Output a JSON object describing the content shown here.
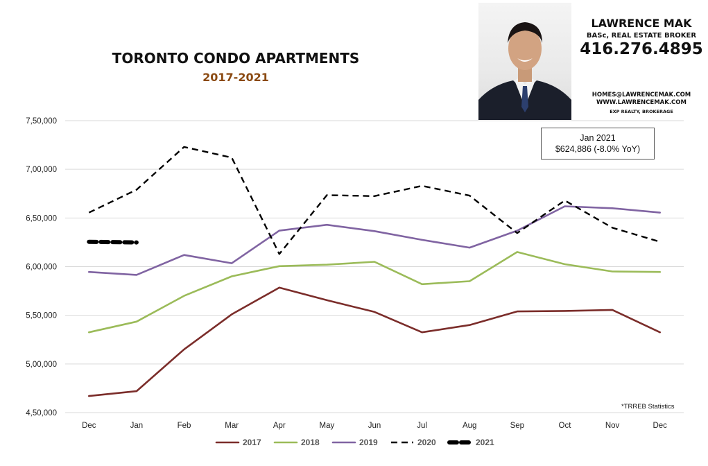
{
  "header": {
    "title": "TORONTO CONDO APARTMENTS",
    "subtitle": "2017-2021"
  },
  "agent": {
    "name": "LAWRENCE MAK",
    "credentials": "BASc, REAL ESTATE BROKER",
    "phone": "416.276.4895",
    "email": "HOMES@LAWRENCEMAK.COM",
    "website": "WWW.LAWRENCEMAK.COM",
    "brokerage": "EXP REALTY, BROKERAGE"
  },
  "callout": {
    "line1": "Jan 2021",
    "line2": "$624,886  (-8.0%  YoY)"
  },
  "source_note": "*TRREB Statistics",
  "colors": {
    "s2017": "#7B2D2A",
    "s2018": "#9BBB59",
    "s2019": "#8064A2",
    "s2020": "#000000",
    "s2021": "#000000",
    "grid": "#D9D9D9",
    "subtitle": "#8B4A12"
  },
  "chart_data": {
    "type": "line",
    "categories": [
      "Dec",
      "Jan",
      "Feb",
      "Mar",
      "Apr",
      "May",
      "Jun",
      "Jul",
      "Aug",
      "Sep",
      "Oct",
      "Nov",
      "Dec"
    ],
    "ylim": [
      450000,
      750000
    ],
    "yticks": [
      450000,
      500000,
      550000,
      600000,
      650000,
      700000,
      750000
    ],
    "ytick_labels": [
      "4,50,000",
      "5,00,000",
      "5,50,000",
      "6,00,000",
      "6,50,000",
      "7,00,000",
      "7,50,000"
    ],
    "grid": true,
    "legend_position": "bottom",
    "series": [
      {
        "name": "2017",
        "style": "solid",
        "values": [
          467000,
          472000,
          515000,
          551000,
          578500,
          565500,
          553500,
          532500,
          540000,
          554000,
          554500,
          555500,
          532500
        ]
      },
      {
        "name": "2018",
        "style": "solid",
        "values": [
          532500,
          543500,
          570000,
          590000,
          600500,
          602000,
          605000,
          582000,
          585000,
          615000,
          602500,
          595000,
          594500
        ]
      },
      {
        "name": "2019",
        "style": "solid",
        "values": [
          594500,
          591500,
          612000,
          603500,
          637000,
          643000,
          636500,
          627500,
          619500,
          637000,
          662000,
          660000,
          655500
        ]
      },
      {
        "name": "2020",
        "style": "dashed",
        "values": [
          655500,
          679000,
          723000,
          712000,
          613000,
          673500,
          672500,
          683000,
          673000,
          634500,
          668000,
          640000,
          625500
        ]
      },
      {
        "name": "2021",
        "style": "bold-dashed",
        "values": [
          625500,
          624886,
          null,
          null,
          null,
          null,
          null,
          null,
          null,
          null,
          null,
          null,
          null
        ]
      }
    ]
  }
}
